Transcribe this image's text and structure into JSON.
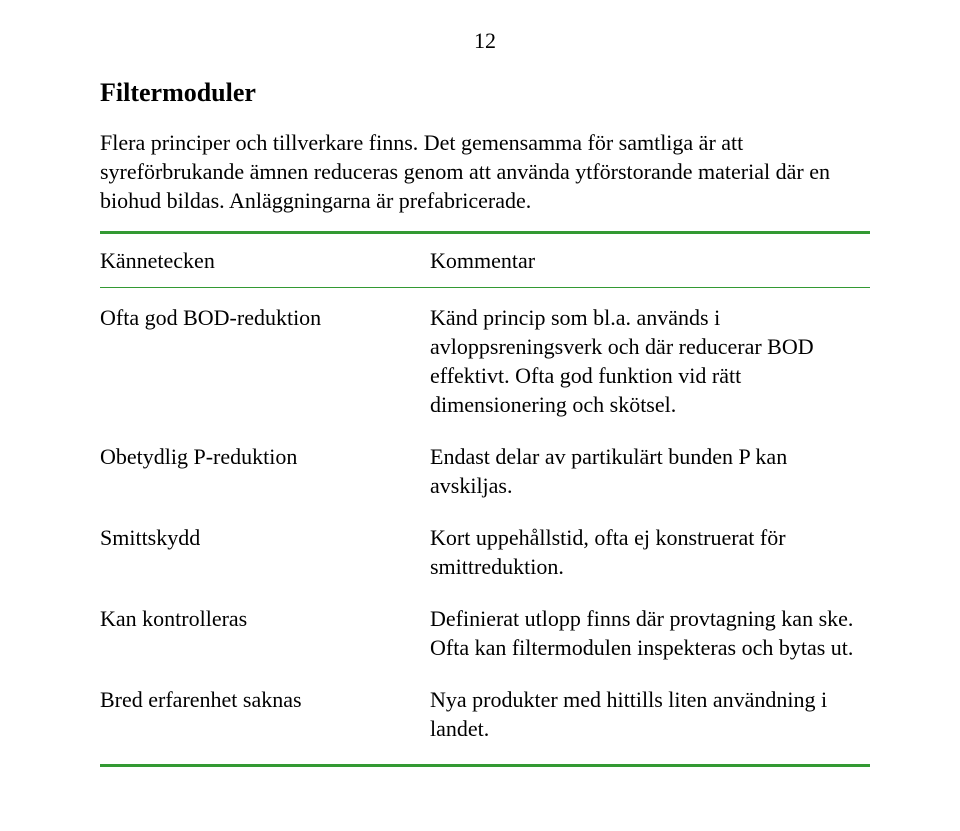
{
  "page": {
    "number": "12",
    "heading": "Filtermoduler",
    "intro": "Flera principer och tillverkare finns. Det gemensamma för samtliga är att syreförbrukande ämnen reduceras genom att använda ytförstorande material där en biohud bildas. Anläggningarna är prefabricerade."
  },
  "colors": {
    "rule": "#339933"
  },
  "table": {
    "header_left": "Kännetecken",
    "header_right": "Kommentar",
    "rows": [
      {
        "left": "Ofta god BOD-reduktion",
        "right": "Känd princip som bl.a. används i avloppsreningsverk och där reducerar BOD effektivt. Ofta god funktion vid rätt dimensionering och skötsel."
      },
      {
        "left": "Obetydlig P-reduktion",
        "right": "Endast delar av partikulärt bunden P kan avskiljas."
      },
      {
        "left": "Smittskydd",
        "right": "Kort uppehållstid, ofta ej konstruerat för smittreduktion."
      },
      {
        "left": "Kan kontrolleras",
        "right": "Definierat utlopp finns där provtagning kan ske. Ofta kan filtermodulen inspekteras och bytas ut."
      },
      {
        "left": "Bred erfarenhet saknas",
        "right": "Nya produkter med hittills liten användning i landet."
      }
    ]
  }
}
